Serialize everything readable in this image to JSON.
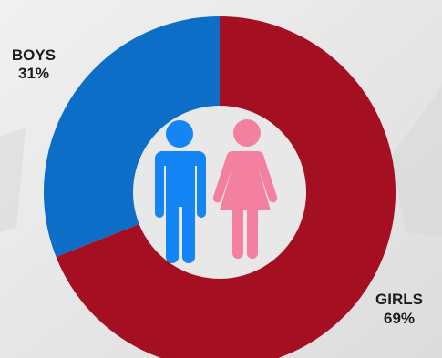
{
  "colors": {
    "background": "#e9e9e9",
    "boys": "#0d6ec8",
    "girls": "#a50f22",
    "center_disc": "#e8e8e8",
    "boy_icon": "#1485f5",
    "girl_icon": "#f2809e"
  },
  "icons": [
    "boy-figure-icon",
    "girl-figure-icon"
  ],
  "chart_data": {
    "type": "donut",
    "title": "",
    "slices": [
      {
        "label": "BOYS",
        "value": 31,
        "value_label": "31%",
        "color": "#0d6ec8"
      },
      {
        "label": "GIRLS",
        "value": 69,
        "value_label": "69%",
        "color": "#a50f22"
      }
    ],
    "legend": "none"
  }
}
